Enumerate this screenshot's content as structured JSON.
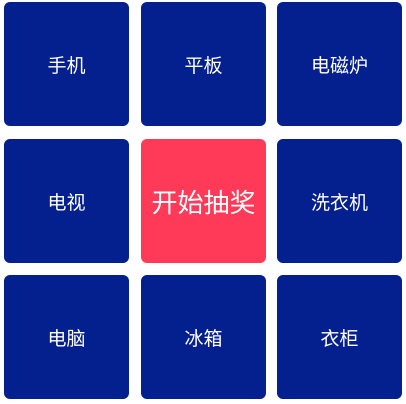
{
  "prize_grid": {
    "prizes": [
      "手机",
      "平板",
      "电磁炉",
      "电视",
      "洗衣机",
      "电脑",
      "冰箱",
      "衣柜"
    ],
    "start_label": "开始抽奖"
  },
  "colors": {
    "prize_bg": "#04208f",
    "start_bg": "#ff3a59",
    "text": "#ffffff"
  }
}
